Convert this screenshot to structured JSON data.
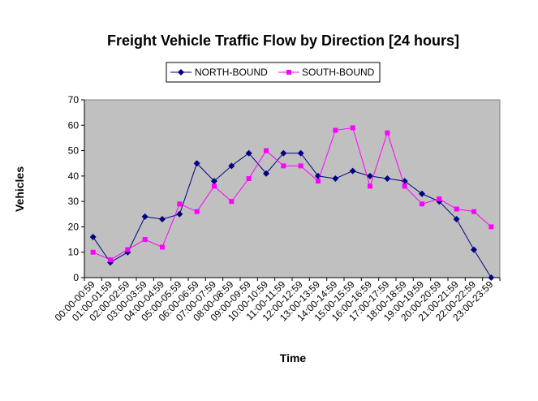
{
  "chart_data": {
    "type": "line",
    "title": "Freight Vehicle Traffic Flow by Direction [24 hours]",
    "xlabel": "Time",
    "ylabel": "Vehicles",
    "ylim": [
      0,
      70
    ],
    "yticks": [
      0,
      10,
      20,
      30,
      40,
      50,
      60,
      70
    ],
    "grid": false,
    "legend_position": "top",
    "plot_background": "#c0c0c0",
    "categories": [
      "00:00-00:59",
      "01:00-01:59",
      "02:00-02:59",
      "03:00-03:59",
      "04:00-04:59",
      "05:00-05:59",
      "06:00-06:59",
      "07:00-07:59",
      "08:00-08:59",
      "09:00-09:59",
      "10:00-10:59",
      "11:00-11:59",
      "12:00-12:59",
      "13:00-13:59",
      "14:00-14:59",
      "15:00-15:59",
      "16:00-16:59",
      "17:00-17:59",
      "18:00-18:59",
      "19:00-19:59",
      "20:00-20:59",
      "21:00-21:59",
      "22:00-22:59",
      "23:00-23:59"
    ],
    "series": [
      {
        "name": "NORTH-BOUND",
        "color": "#000080",
        "marker": "diamond",
        "values": [
          16,
          6,
          10,
          24,
          23,
          25,
          45,
          38,
          44,
          49,
          41,
          49,
          49,
          40,
          39,
          42,
          40,
          39,
          38,
          33,
          30,
          23,
          11,
          0
        ]
      },
      {
        "name": "SOUTH-BOUND",
        "color": "#ff00ff",
        "marker": "square",
        "values": [
          10,
          7,
          11,
          15,
          12,
          29,
          26,
          36,
          30,
          39,
          50,
          44,
          44,
          38,
          58,
          59,
          36,
          57,
          36,
          29,
          31,
          27,
          26,
          20
        ]
      }
    ]
  }
}
